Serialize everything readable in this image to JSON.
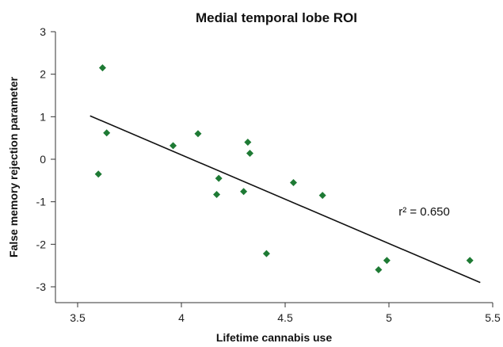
{
  "chart_data": {
    "type": "scatter",
    "title": "Medial temporal lobe ROI",
    "xlabel": "Lifetime cannabis use",
    "ylabel": "False memory rejection parameter",
    "xlim": [
      3.4,
      5.5
    ],
    "ylim": [
      -3.35,
      3
    ],
    "x_ticks": [
      3.5,
      4,
      4.5,
      5,
      5.5
    ],
    "x_tick_labels": [
      "3.5",
      "4",
      "4.5",
      "5",
      "5.5"
    ],
    "y_ticks": [
      3,
      2,
      1,
      0,
      -1,
      -2,
      -3
    ],
    "y_tick_labels": [
      "3",
      "2",
      "1",
      "0",
      "-1",
      "-2",
      "-3"
    ],
    "grid": false,
    "marker": "diamond",
    "marker_color": "#1e7a34",
    "series": [
      {
        "points": [
          {
            "x": 3.6,
            "y": -0.35
          },
          {
            "x": 3.62,
            "y": 2.15
          },
          {
            "x": 3.64,
            "y": 0.62
          },
          {
            "x": 3.96,
            "y": 0.32
          },
          {
            "x": 4.08,
            "y": 0.6
          },
          {
            "x": 4.17,
            "y": -0.83
          },
          {
            "x": 4.18,
            "y": -0.45
          },
          {
            "x": 4.3,
            "y": -0.76
          },
          {
            "x": 4.32,
            "y": 0.4
          },
          {
            "x": 4.33,
            "y": 0.14
          },
          {
            "x": 4.41,
            "y": -2.22
          },
          {
            "x": 4.54,
            "y": -0.55
          },
          {
            "x": 4.68,
            "y": -0.85
          },
          {
            "x": 4.95,
            "y": -2.6
          },
          {
            "x": 4.99,
            "y": -2.38
          },
          {
            "x": 5.39,
            "y": -2.38
          }
        ]
      }
    ],
    "regression_line": {
      "x": [
        3.56,
        5.44
      ],
      "y": [
        1.02,
        -2.9
      ],
      "color": "#111111"
    },
    "annotation": {
      "text": "r² = 0.650",
      "x": 5.17,
      "y": -1.32
    }
  }
}
